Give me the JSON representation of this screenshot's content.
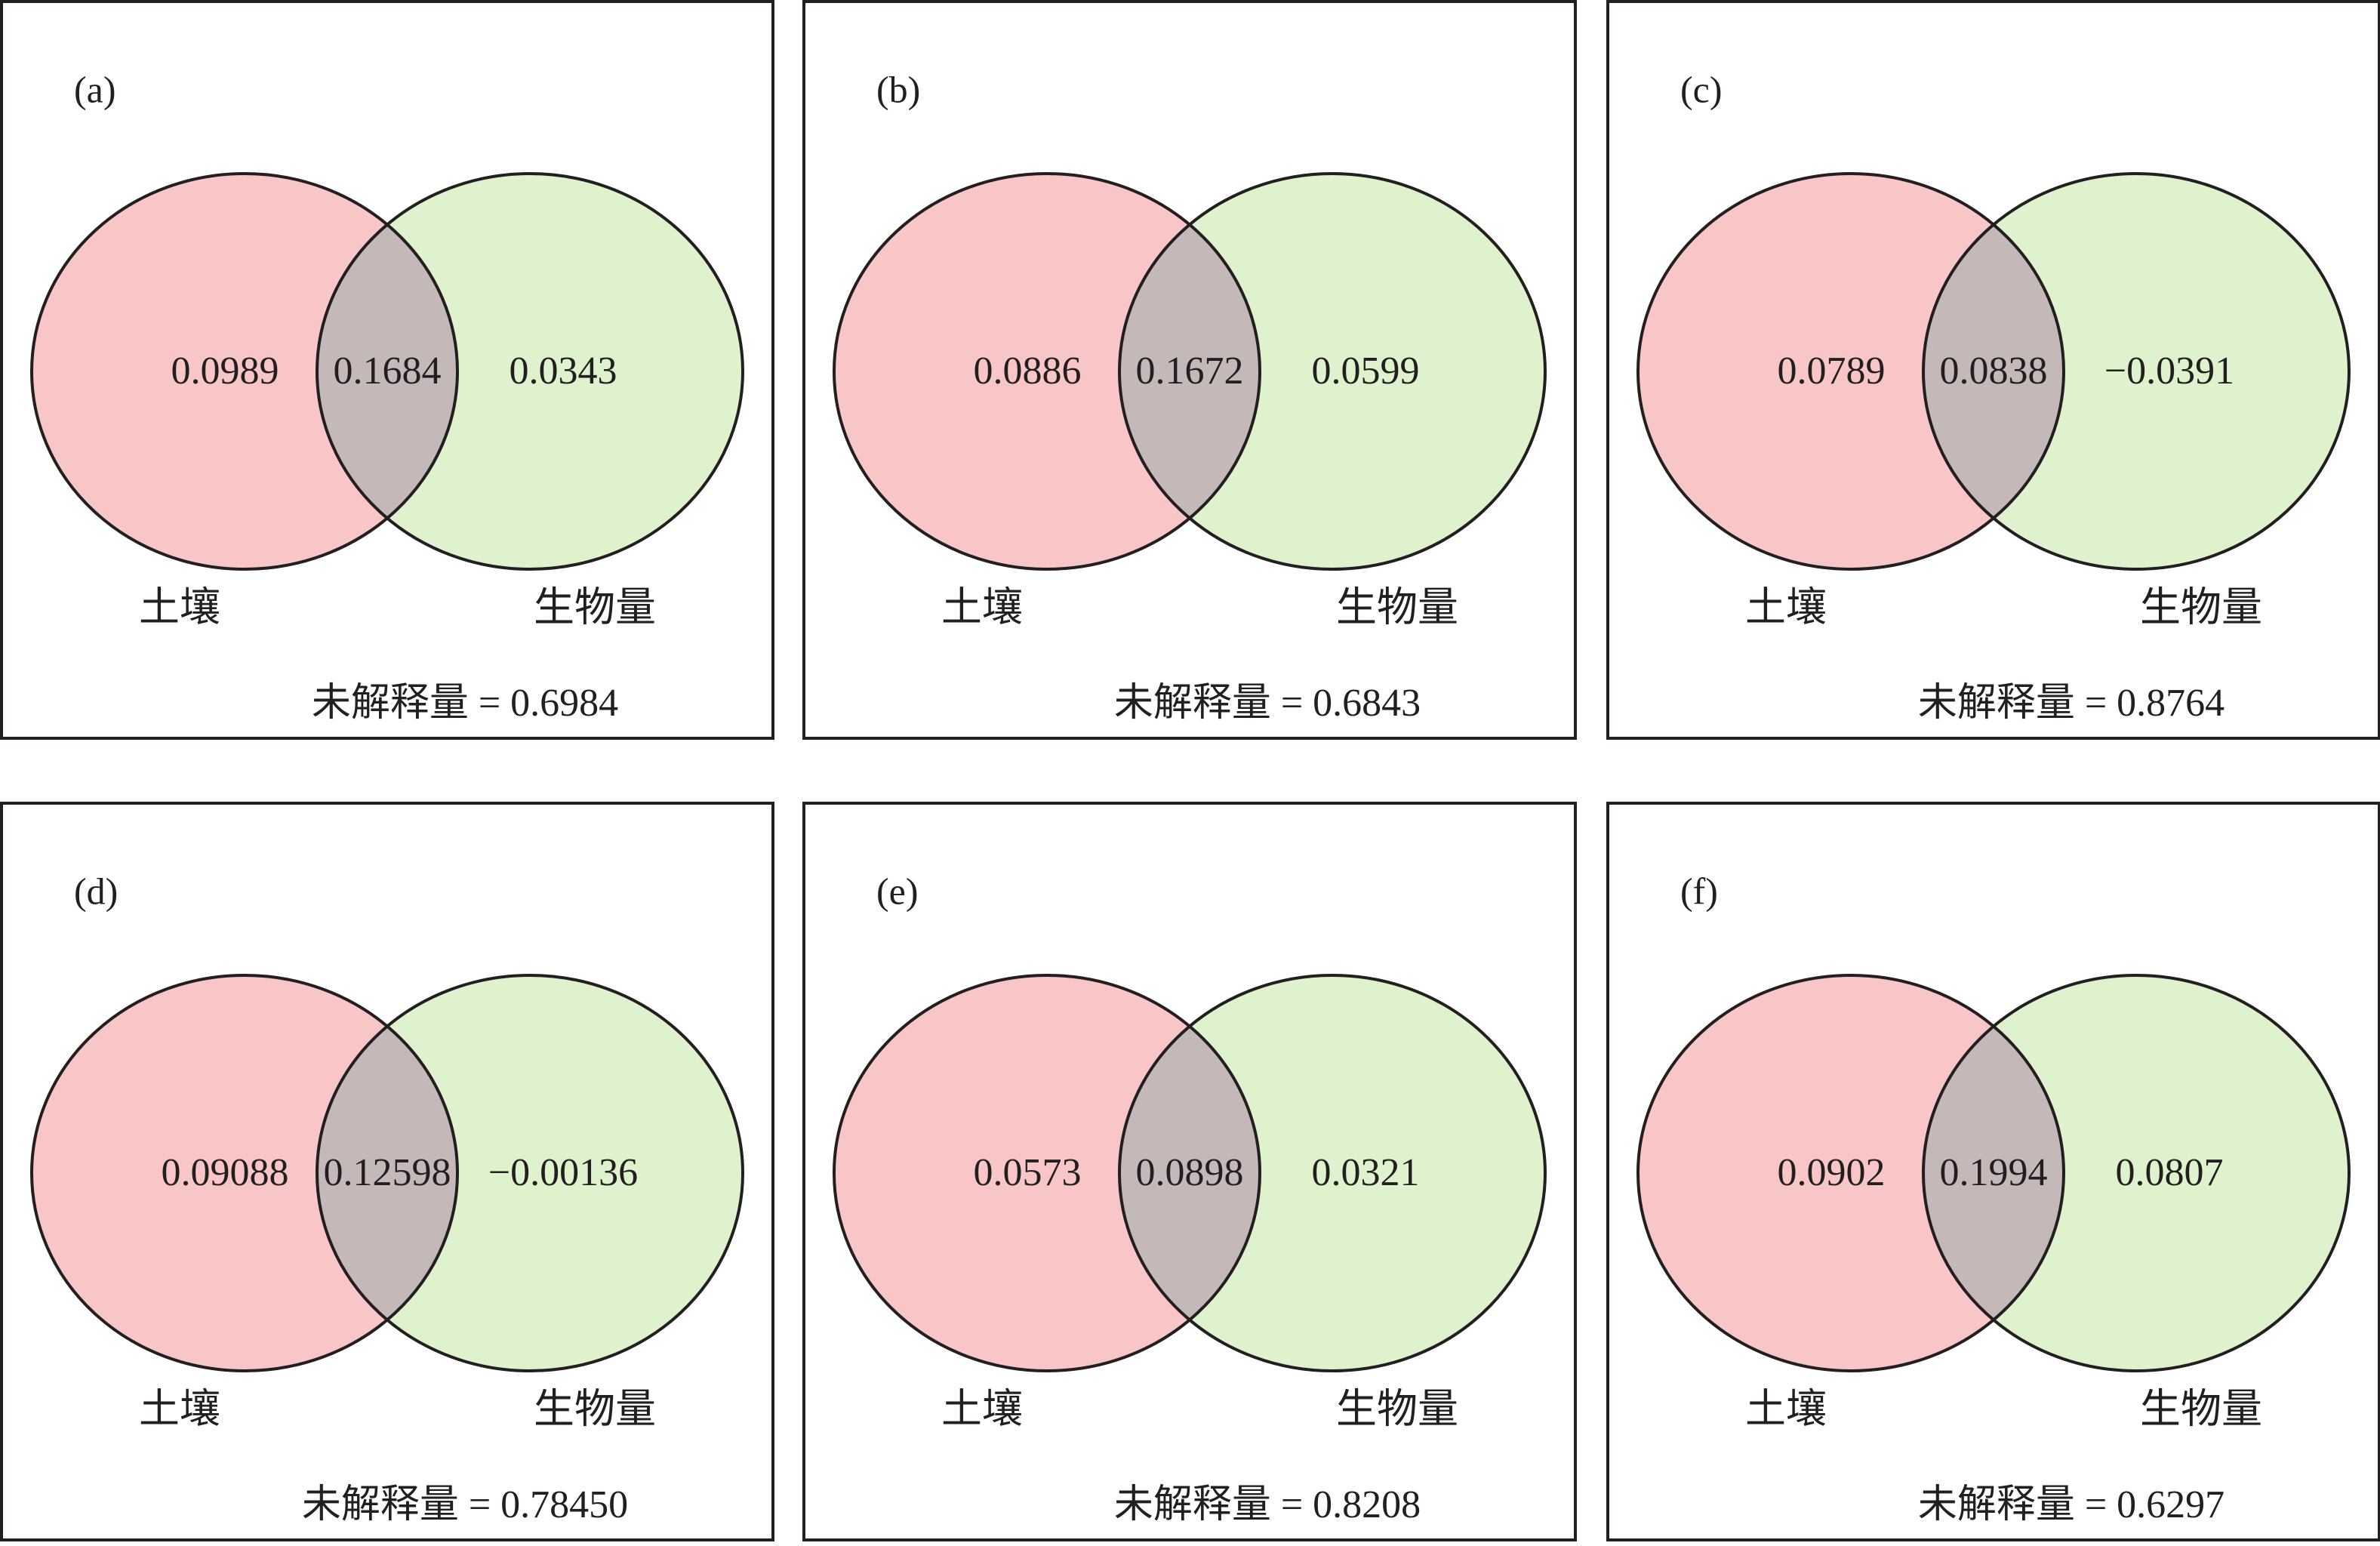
{
  "colors": {
    "soil": "#f9c6c7",
    "biomass": "#def2cd",
    "overlap": "#c4b9b8",
    "stroke": "#231f20"
  },
  "panels": [
    {
      "letter": "(a)",
      "soil_only": "0.0989",
      "shared": "0.1684",
      "biomass_only": "0.0343",
      "soil_label": "土壤",
      "biomass_label": "生物量",
      "unexplained": "未解释量 = 0.6984"
    },
    {
      "letter": "(b)",
      "soil_only": "0.0886",
      "shared": "0.1672",
      "biomass_only": "0.0599",
      "soil_label": "土壤",
      "biomass_label": "生物量",
      "unexplained": "未解释量 = 0.6843"
    },
    {
      "letter": "(c)",
      "soil_only": "0.0789",
      "shared": "0.0838",
      "biomass_only": "−0.0391",
      "soil_label": "土壤",
      "biomass_label": "生物量",
      "unexplained": "未解释量 = 0.8764"
    },
    {
      "letter": "(d)",
      "soil_only": "0.09088",
      "shared": "0.12598",
      "biomass_only": "−0.00136",
      "soil_label": "土壤",
      "biomass_label": "生物量",
      "unexplained": "未解释量 = 0.78450"
    },
    {
      "letter": "(e)",
      "soil_only": "0.0573",
      "shared": "0.0898",
      "biomass_only": "0.0321",
      "soil_label": "土壤",
      "biomass_label": "生物量",
      "unexplained": "未解释量 = 0.8208"
    },
    {
      "letter": "(f)",
      "soil_only": "0.0902",
      "shared": "0.1994",
      "biomass_only": "0.0807",
      "soil_label": "土壤",
      "biomass_label": "生物量",
      "unexplained": "未解释量 = 0.6297"
    }
  ]
}
